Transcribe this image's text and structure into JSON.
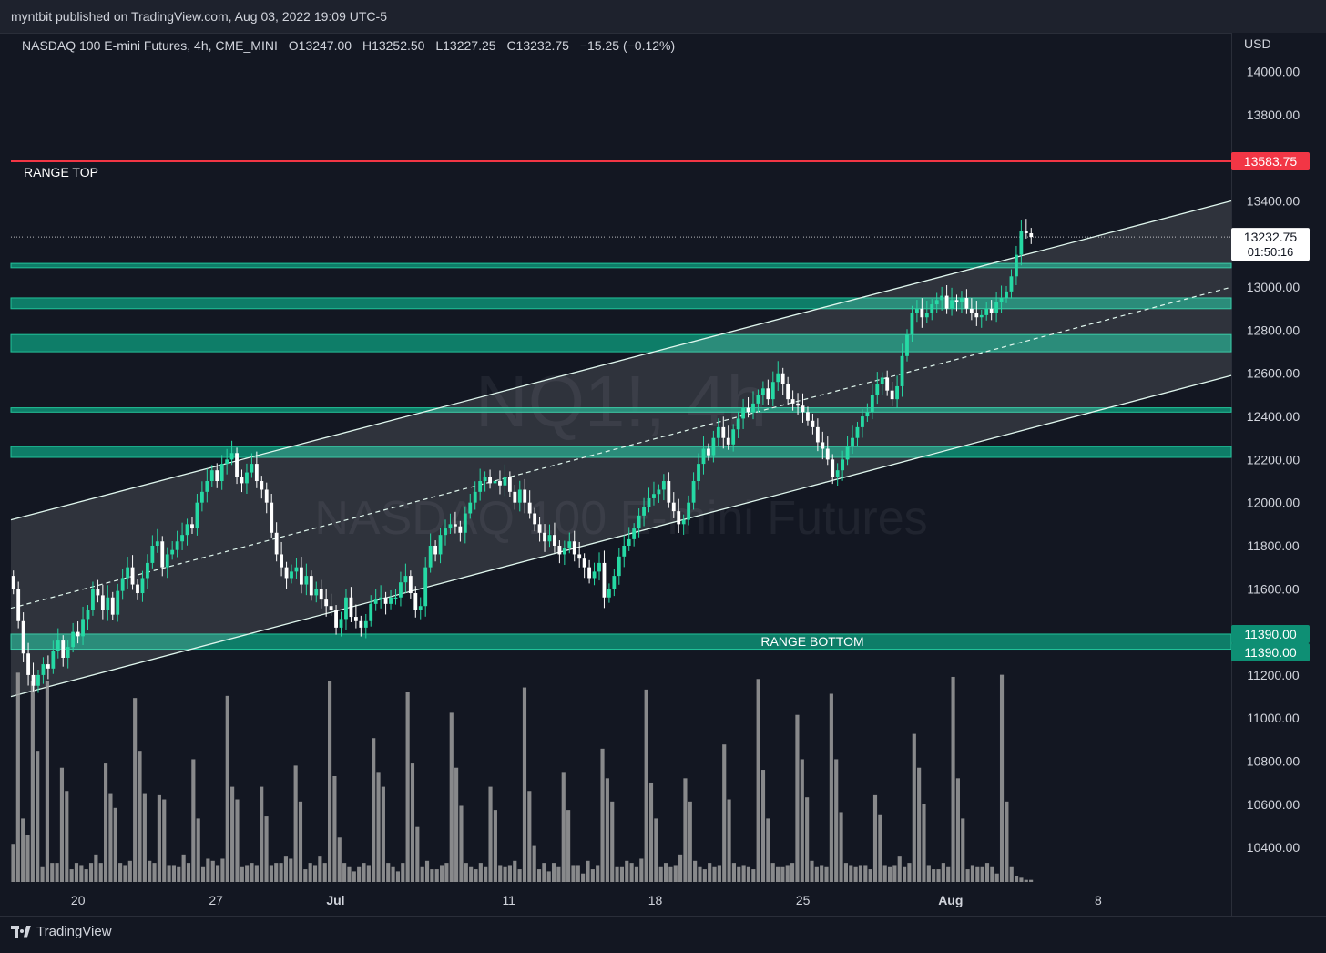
{
  "header": {
    "published": "myntbit published on TradingView.com, Aug 03, 2022 19:09 UTC-5"
  },
  "legend": {
    "symbol": "NASDAQ 100 E-mini Futures, 4h, CME_MINI",
    "open": "O13247.00",
    "high": "H13252.50",
    "low": "L13227.25",
    "close": "C13232.75",
    "change": "−15.25 (−0.12%)"
  },
  "watermark": {
    "ticker": "NQ1!, 4h",
    "name": "NASDAQ 100 E-mini Futures"
  },
  "axis": {
    "currency": "USD"
  },
  "footer": {
    "brand": "TradingView"
  },
  "colors": {
    "background": "#131722",
    "up": "#26d9a4",
    "down": "#ffffff",
    "zone": "#0e8f74",
    "range_top_line": "#f23645",
    "channel": "#e0f7ee",
    "volume": "#9e9e9e"
  },
  "chart_data": {
    "type": "candlestick",
    "interval": "4h",
    "ylim": [
      10240,
      14180
    ],
    "y_ticks": [
      14000,
      13800,
      13400,
      13000,
      12800,
      12600,
      12400,
      12200,
      12000,
      11800,
      11600,
      11200,
      11000,
      10800,
      10600,
      10400
    ],
    "x_labels": [
      {
        "label": "20",
        "t": 0.055,
        "bold": false
      },
      {
        "label": "27",
        "t": 0.168,
        "bold": false
      },
      {
        "label": "Jul",
        "t": 0.266,
        "bold": true
      },
      {
        "label": "11",
        "t": 0.408,
        "bold": false
      },
      {
        "label": "18",
        "t": 0.528,
        "bold": false
      },
      {
        "label": "25",
        "t": 0.649,
        "bold": false
      },
      {
        "label": "Aug",
        "t": 0.77,
        "bold": true
      },
      {
        "label": "8",
        "t": 0.891,
        "bold": false
      }
    ],
    "price_tags": [
      {
        "text": "13583.75",
        "value": 13583.75,
        "bg": "#f23645",
        "fg": "#ffffff"
      },
      {
        "text": "13232.75",
        "sub": "01:50:16",
        "value": 13232.75,
        "bg": "#ffffff",
        "fg": "#131722"
      },
      {
        "text": "11390.00",
        "value": 11390,
        "bg": "#0e8f74",
        "fg": "#ffffff"
      },
      {
        "text": "11390.00",
        "value": 11390,
        "bg": "#0e8f74",
        "fg": "#ffffff",
        "offset": 1
      }
    ],
    "horizontal_lines": [
      {
        "label": "RANGE TOP",
        "value": 13583.75,
        "color": "#f23645"
      }
    ],
    "last_price": 13232.75,
    "zones": [
      {
        "label": "",
        "low": 13090,
        "high": 13110
      },
      {
        "label": "",
        "low": 12900,
        "high": 12950
      },
      {
        "label": "",
        "low": 12700,
        "high": 12780
      },
      {
        "label": "",
        "low": 12420,
        "high": 12440
      },
      {
        "label": "",
        "low": 12210,
        "high": 12260
      },
      {
        "label": "RANGE BOTTOM",
        "low": 11320,
        "high": 11390
      }
    ],
    "channel": {
      "t_start": 0.0,
      "t_end": 1.0,
      "upper": [
        11920,
        13400
      ],
      "middle": [
        11510,
        13000
      ],
      "lower": [
        11100,
        12590
      ]
    },
    "candles_close": [
      11600,
      11450,
      11300,
      11200,
      11150,
      11200,
      11250,
      11230,
      11310,
      11360,
      11280,
      11330,
      11400,
      11380,
      11460,
      11500,
      11600,
      11570,
      11500,
      11560,
      11480,
      11590,
      11650,
      11700,
      11620,
      11580,
      11650,
      11720,
      11800,
      11820,
      11700,
      11760,
      11780,
      11820,
      11850,
      11900,
      11880,
      12000,
      12050,
      12100,
      12150,
      12100,
      12180,
      12200,
      12230,
      12120,
      12090,
      12140,
      12180,
      12100,
      12060,
      12000,
      11860,
      11760,
      11700,
      11650,
      11680,
      11700,
      11620,
      11660,
      11570,
      11600,
      11550,
      11520,
      11500,
      11420,
      11460,
      11560,
      11470,
      11450,
      11420,
      11450,
      11530,
      11550,
      11560,
      11530,
      11560,
      11560,
      11630,
      11660,
      11580,
      11500,
      11520,
      11700,
      11800,
      11760,
      11850,
      11880,
      11900,
      11890,
      11860,
      11950,
      12000,
      12050,
      12100,
      12120,
      12090,
      12100,
      12080,
      12120,
      12050,
      12000,
      12060,
      12000,
      11950,
      11900,
      11860,
      11820,
      11850,
      11800,
      11760,
      11790,
      11820,
      11760,
      11740,
      11700,
      11650,
      11680,
      11720,
      11560,
      11600,
      11660,
      11750,
      11800,
      11830,
      11880,
      11940,
      11980,
      12020,
      12040,
      12060,
      12100,
      12000,
      11960,
      11900,
      11920,
      12000,
      12100,
      12180,
      12250,
      12220,
      12300,
      12350,
      12300,
      12270,
      12340,
      12390,
      12440,
      12420,
      12460,
      12500,
      12530,
      12480,
      12560,
      12600,
      12550,
      12480,
      12460,
      12450,
      12420,
      12380,
      12350,
      12280,
      12250,
      12200,
      12120,
      12150,
      12200,
      12260,
      12300,
      12350,
      12400,
      12420,
      12500,
      12550,
      12580,
      12520,
      12480,
      12540,
      12680,
      12780,
      12880,
      12900,
      12860,
      12880,
      12920,
      12940,
      12960,
      12900,
      12940,
      12930,
      12950,
      12900,
      12880,
      12860,
      12870,
      12900,
      12880,
      12930,
      12950,
      12980,
      13050,
      13150,
      13260,
      13250,
      13232.75
    ],
    "volume_scale": [
      0,
      1
    ],
    "volume": [
      0.18,
      0.99,
      0.3,
      0.22,
      0.95,
      0.62,
      0.07,
      0.95,
      0.09,
      0.09,
      0.54,
      0.43,
      0.06,
      0.09,
      0.08,
      0.06,
      0.09,
      0.13,
      0.09,
      0.56,
      0.42,
      0.35,
      0.09,
      0.08,
      0.1,
      0.87,
      0.62,
      0.42,
      0.1,
      0.09,
      0.41,
      0.39,
      0.08,
      0.08,
      0.07,
      0.13,
      0.09,
      0.58,
      0.3,
      0.07,
      0.11,
      0.1,
      0.08,
      0.11,
      0.88,
      0.45,
      0.39,
      0.07,
      0.08,
      0.09,
      0.08,
      0.45,
      0.31,
      0.08,
      0.09,
      0.09,
      0.12,
      0.11,
      0.55,
      0.38,
      0.06,
      0.09,
      0.08,
      0.12,
      0.09,
      0.95,
      0.5,
      0.21,
      0.09,
      0.07,
      0.05,
      0.07,
      0.09,
      0.08,
      0.68,
      0.52,
      0.45,
      0.09,
      0.07,
      0.05,
      0.09,
      0.9,
      0.56,
      0.26,
      0.07,
      0.1,
      0.06,
      0.06,
      0.08,
      0.09,
      0.8,
      0.54,
      0.36,
      0.09,
      0.07,
      0.06,
      0.09,
      0.07,
      0.45,
      0.34,
      0.08,
      0.07,
      0.08,
      0.1,
      0.06,
      0.92,
      0.43,
      0.17,
      0.06,
      0.09,
      0.05,
      0.09,
      0.07,
      0.52,
      0.34,
      0.08,
      0.08,
      0.04,
      0.1,
      0.06,
      0.08,
      0.63,
      0.49,
      0.38,
      0.07,
      0.07,
      0.1,
      0.09,
      0.07,
      0.11,
      0.91,
      0.47,
      0.3,
      0.07,
      0.09,
      0.07,
      0.08,
      0.13,
      0.49,
      0.38,
      0.1,
      0.07,
      0.06,
      0.09,
      0.07,
      0.08,
      0.65,
      0.39,
      0.09,
      0.07,
      0.08,
      0.07,
      0.06,
      0.96,
      0.53,
      0.3,
      0.09,
      0.07,
      0.07,
      0.08,
      0.09,
      0.79,
      0.58,
      0.4,
      0.1,
      0.07,
      0.08,
      0.07,
      0.89,
      0.58,
      0.33,
      0.09,
      0.08,
      0.07,
      0.08,
      0.08,
      0.06,
      0.41,
      0.32,
      0.08,
      0.07,
      0.08,
      0.12,
      0.07,
      0.09,
      0.7,
      0.54,
      0.37,
      0.08,
      0.06,
      0.06,
      0.09,
      0.07,
      0.97,
      0.49,
      0.3,
      0.06,
      0.08,
      0.07,
      0.07,
      0.09,
      0.07,
      0.04,
      0.98,
      0.38,
      0.07,
      0.03,
      0.02,
      0.01,
      0.01
    ]
  }
}
